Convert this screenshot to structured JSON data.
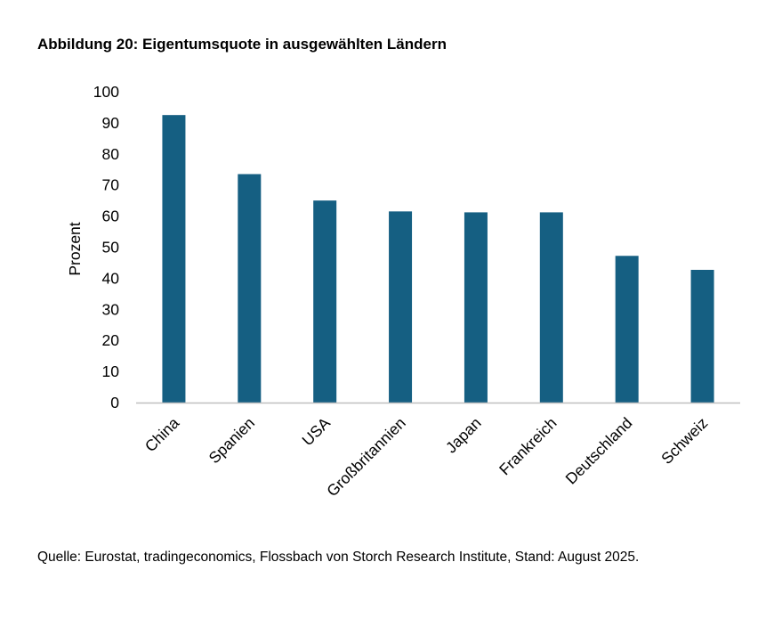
{
  "figure": {
    "title": "Abbildung 20: Eigentumsquote in ausgewählten Ländern",
    "source": "Quelle: Eurostat, tradingeconomics, Flossbach von Storch Research Institute, Stand: August 2025."
  },
  "chart_data": {
    "type": "bar",
    "categories": [
      "China",
      "Spanien",
      "USA",
      "Großbritannien",
      "Japan",
      "Frankreich",
      "Deutschland",
      "Schweiz"
    ],
    "values": [
      92.5,
      73.5,
      65,
      61.5,
      61.2,
      61.2,
      47.2,
      42.7
    ],
    "ylabel": "Prozent",
    "xlabel": "",
    "ylim": [
      0,
      100
    ],
    "yticks": [
      "0",
      "10",
      "20",
      "30",
      "40",
      "50",
      "60",
      "70",
      "80",
      "90",
      "100"
    ],
    "grid": false,
    "colors": {
      "bar": "#155f82",
      "axis": "#bfbfbf"
    }
  }
}
